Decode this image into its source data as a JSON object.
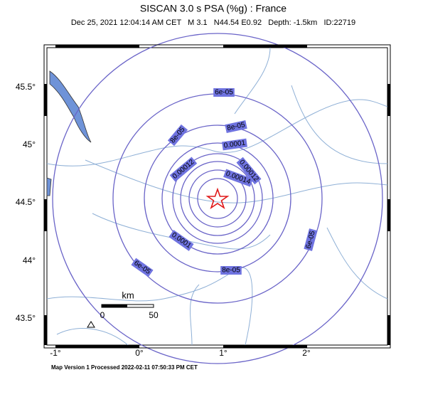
{
  "header": {
    "title": "SISCAN 3.0 s PSA (%g) : France",
    "subtitle": "Dec 25, 2021 12:04:14 AM CET   M 3.1   N44.54 E0.92   Depth: -1.5km   ID:22719"
  },
  "map": {
    "lat_labels": [
      "45.5°",
      "45°",
      "44.5°",
      "44°",
      "43.5°"
    ],
    "lon_labels": [
      "-1°",
      "0°",
      "1°",
      "2°"
    ],
    "contour_labels": [
      "6e-05",
      "8e-05",
      "8e-05",
      "0.0001",
      "0.00012",
      "0.00012",
      "0.00014",
      "0.0001",
      "8e-05",
      "6e-05",
      "6e-05"
    ],
    "scale": {
      "unit": "km",
      "start": "0",
      "end": "50"
    }
  },
  "footer": "Map Version 1 Processed 2022-02-11 07:50:33 PM CET"
}
